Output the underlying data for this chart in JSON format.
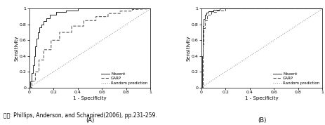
{
  "panel_A_label": "(A)",
  "panel_B_label": "(B)",
  "xlabel": "1 - Specificity",
  "ylabel": "Sensitivity",
  "xlim": [
    0,
    1
  ],
  "ylim": [
    0,
    1
  ],
  "xticks": [
    0,
    0.2,
    0.4,
    0.6,
    0.8,
    1
  ],
  "yticks": [
    0,
    0.2,
    0.4,
    0.6,
    0.8,
    1
  ],
  "xtick_labels": [
    "0",
    "0.2",
    "0.4",
    "0.6",
    "0.8",
    "1"
  ],
  "ytick_labels": [
    "0",
    "0.2",
    "0.4",
    "0.6",
    "0.8",
    "1"
  ],
  "legend_labels": [
    "Maxent",
    "GARP",
    "Random prediction"
  ],
  "caption": "자료: Phillips, Anderson, and Schapired(2006), pp.231-259.",
  "background_color": "#ffffff",
  "panelA_maxent_x": [
    0,
    0.01,
    0.01,
    0.02,
    0.02,
    0.03,
    0.03,
    0.04,
    0.04,
    0.05,
    0.05,
    0.06,
    0.06,
    0.07,
    0.07,
    0.08,
    0.08,
    0.1,
    0.1,
    0.12,
    0.12,
    0.14,
    0.14,
    0.17,
    0.17,
    0.22,
    0.22,
    0.3,
    0.3,
    0.4,
    0.4,
    1.0
  ],
  "panelA_maxent_y": [
    0,
    0.0,
    0.08,
    0.08,
    0.18,
    0.18,
    0.28,
    0.28,
    0.4,
    0.4,
    0.52,
    0.52,
    0.62,
    0.62,
    0.7,
    0.7,
    0.76,
    0.76,
    0.8,
    0.8,
    0.84,
    0.84,
    0.88,
    0.88,
    0.92,
    0.92,
    0.96,
    0.96,
    0.98,
    0.98,
    1.0,
    1.0
  ],
  "panelA_garp_x": [
    0,
    0.02,
    0.02,
    0.05,
    0.05,
    0.08,
    0.08,
    0.12,
    0.12,
    0.18,
    0.18,
    0.25,
    0.25,
    0.35,
    0.35,
    0.45,
    0.45,
    0.55,
    0.55,
    0.65,
    0.65,
    0.75,
    0.75,
    0.85,
    0.85,
    1.0
  ],
  "panelA_garp_y": [
    0,
    0.0,
    0.08,
    0.08,
    0.2,
    0.2,
    0.35,
    0.35,
    0.48,
    0.48,
    0.6,
    0.6,
    0.7,
    0.7,
    0.78,
    0.78,
    0.85,
    0.85,
    0.9,
    0.9,
    0.94,
    0.94,
    0.97,
    0.97,
    0.99,
    1.0
  ],
  "panelB_maxent_x": [
    0,
    0.005,
    0.005,
    0.01,
    0.01,
    0.015,
    0.015,
    0.02,
    0.02,
    0.03,
    0.03,
    0.04,
    0.04,
    0.06,
    0.06,
    0.1,
    0.1,
    0.15,
    0.15,
    1.0
  ],
  "panelB_maxent_y": [
    0,
    0.0,
    0.4,
    0.4,
    0.65,
    0.65,
    0.78,
    0.78,
    0.87,
    0.87,
    0.92,
    0.92,
    0.95,
    0.95,
    0.97,
    0.97,
    0.99,
    0.99,
    1.0,
    1.0
  ],
  "panelB_garp_x": [
    0,
    0.01,
    0.01,
    0.02,
    0.02,
    0.03,
    0.03,
    0.05,
    0.05,
    0.08,
    0.08,
    0.12,
    0.12,
    0.2,
    0.2,
    1.0
  ],
  "panelB_garp_y": [
    0,
    0.0,
    0.55,
    0.55,
    0.75,
    0.75,
    0.85,
    0.85,
    0.92,
    0.92,
    0.96,
    0.96,
    0.98,
    0.98,
    1.0,
    1.0
  ]
}
